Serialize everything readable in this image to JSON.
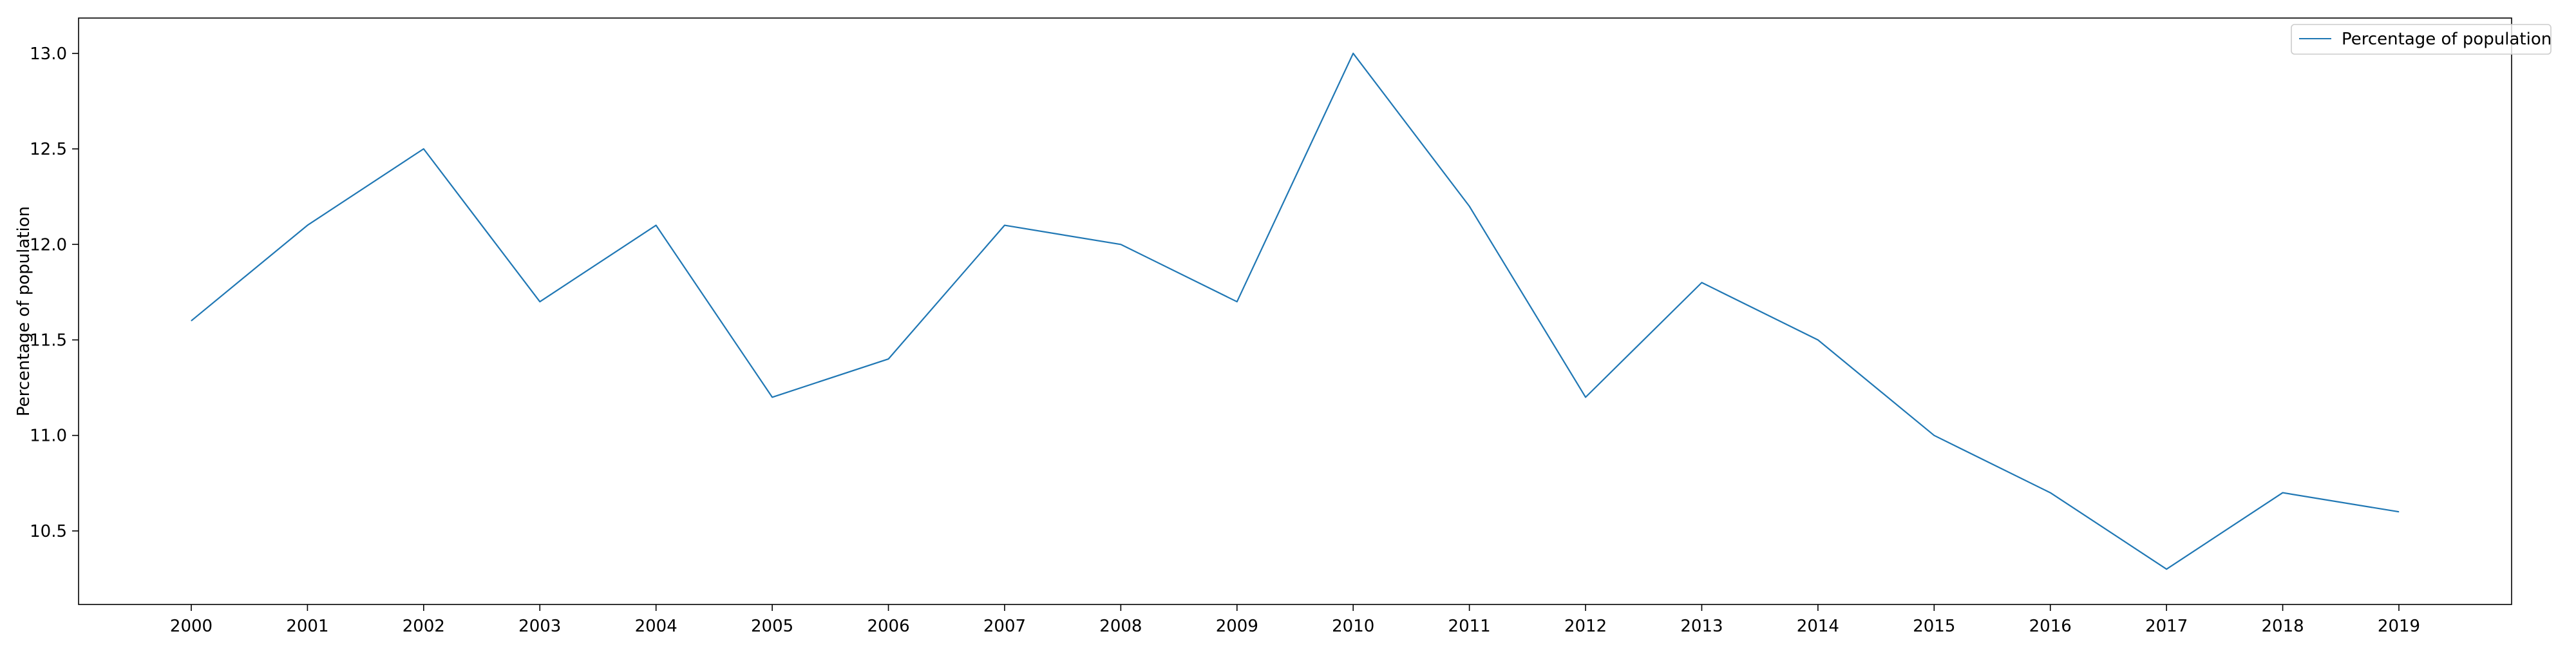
{
  "chart_data": {
    "type": "line",
    "title": "",
    "xlabel": "",
    "ylabel": "Percentage of population",
    "categories": [
      "2000",
      "2001",
      "2002",
      "2003",
      "2004",
      "2005",
      "2006",
      "2007",
      "2008",
      "2009",
      "2010",
      "2011",
      "2012",
      "2013",
      "2014",
      "2015",
      "2016",
      "2017",
      "2018",
      "2019"
    ],
    "series": [
      {
        "name": "Percentage of population",
        "color": "#1f77b4",
        "values": [
          11.6,
          12.1,
          12.5,
          11.7,
          12.1,
          11.2,
          11.4,
          12.1,
          12.0,
          11.7,
          13.0,
          12.2,
          11.2,
          11.8,
          11.5,
          11.0,
          10.7,
          10.3,
          10.7,
          10.6
        ]
      }
    ],
    "yticks": [
      "10.5",
      "11.0",
      "11.5",
      "12.0",
      "12.5",
      "13.0"
    ],
    "ylim": [
      10.115,
      13.185
    ],
    "grid": false,
    "legend": "top-right"
  }
}
